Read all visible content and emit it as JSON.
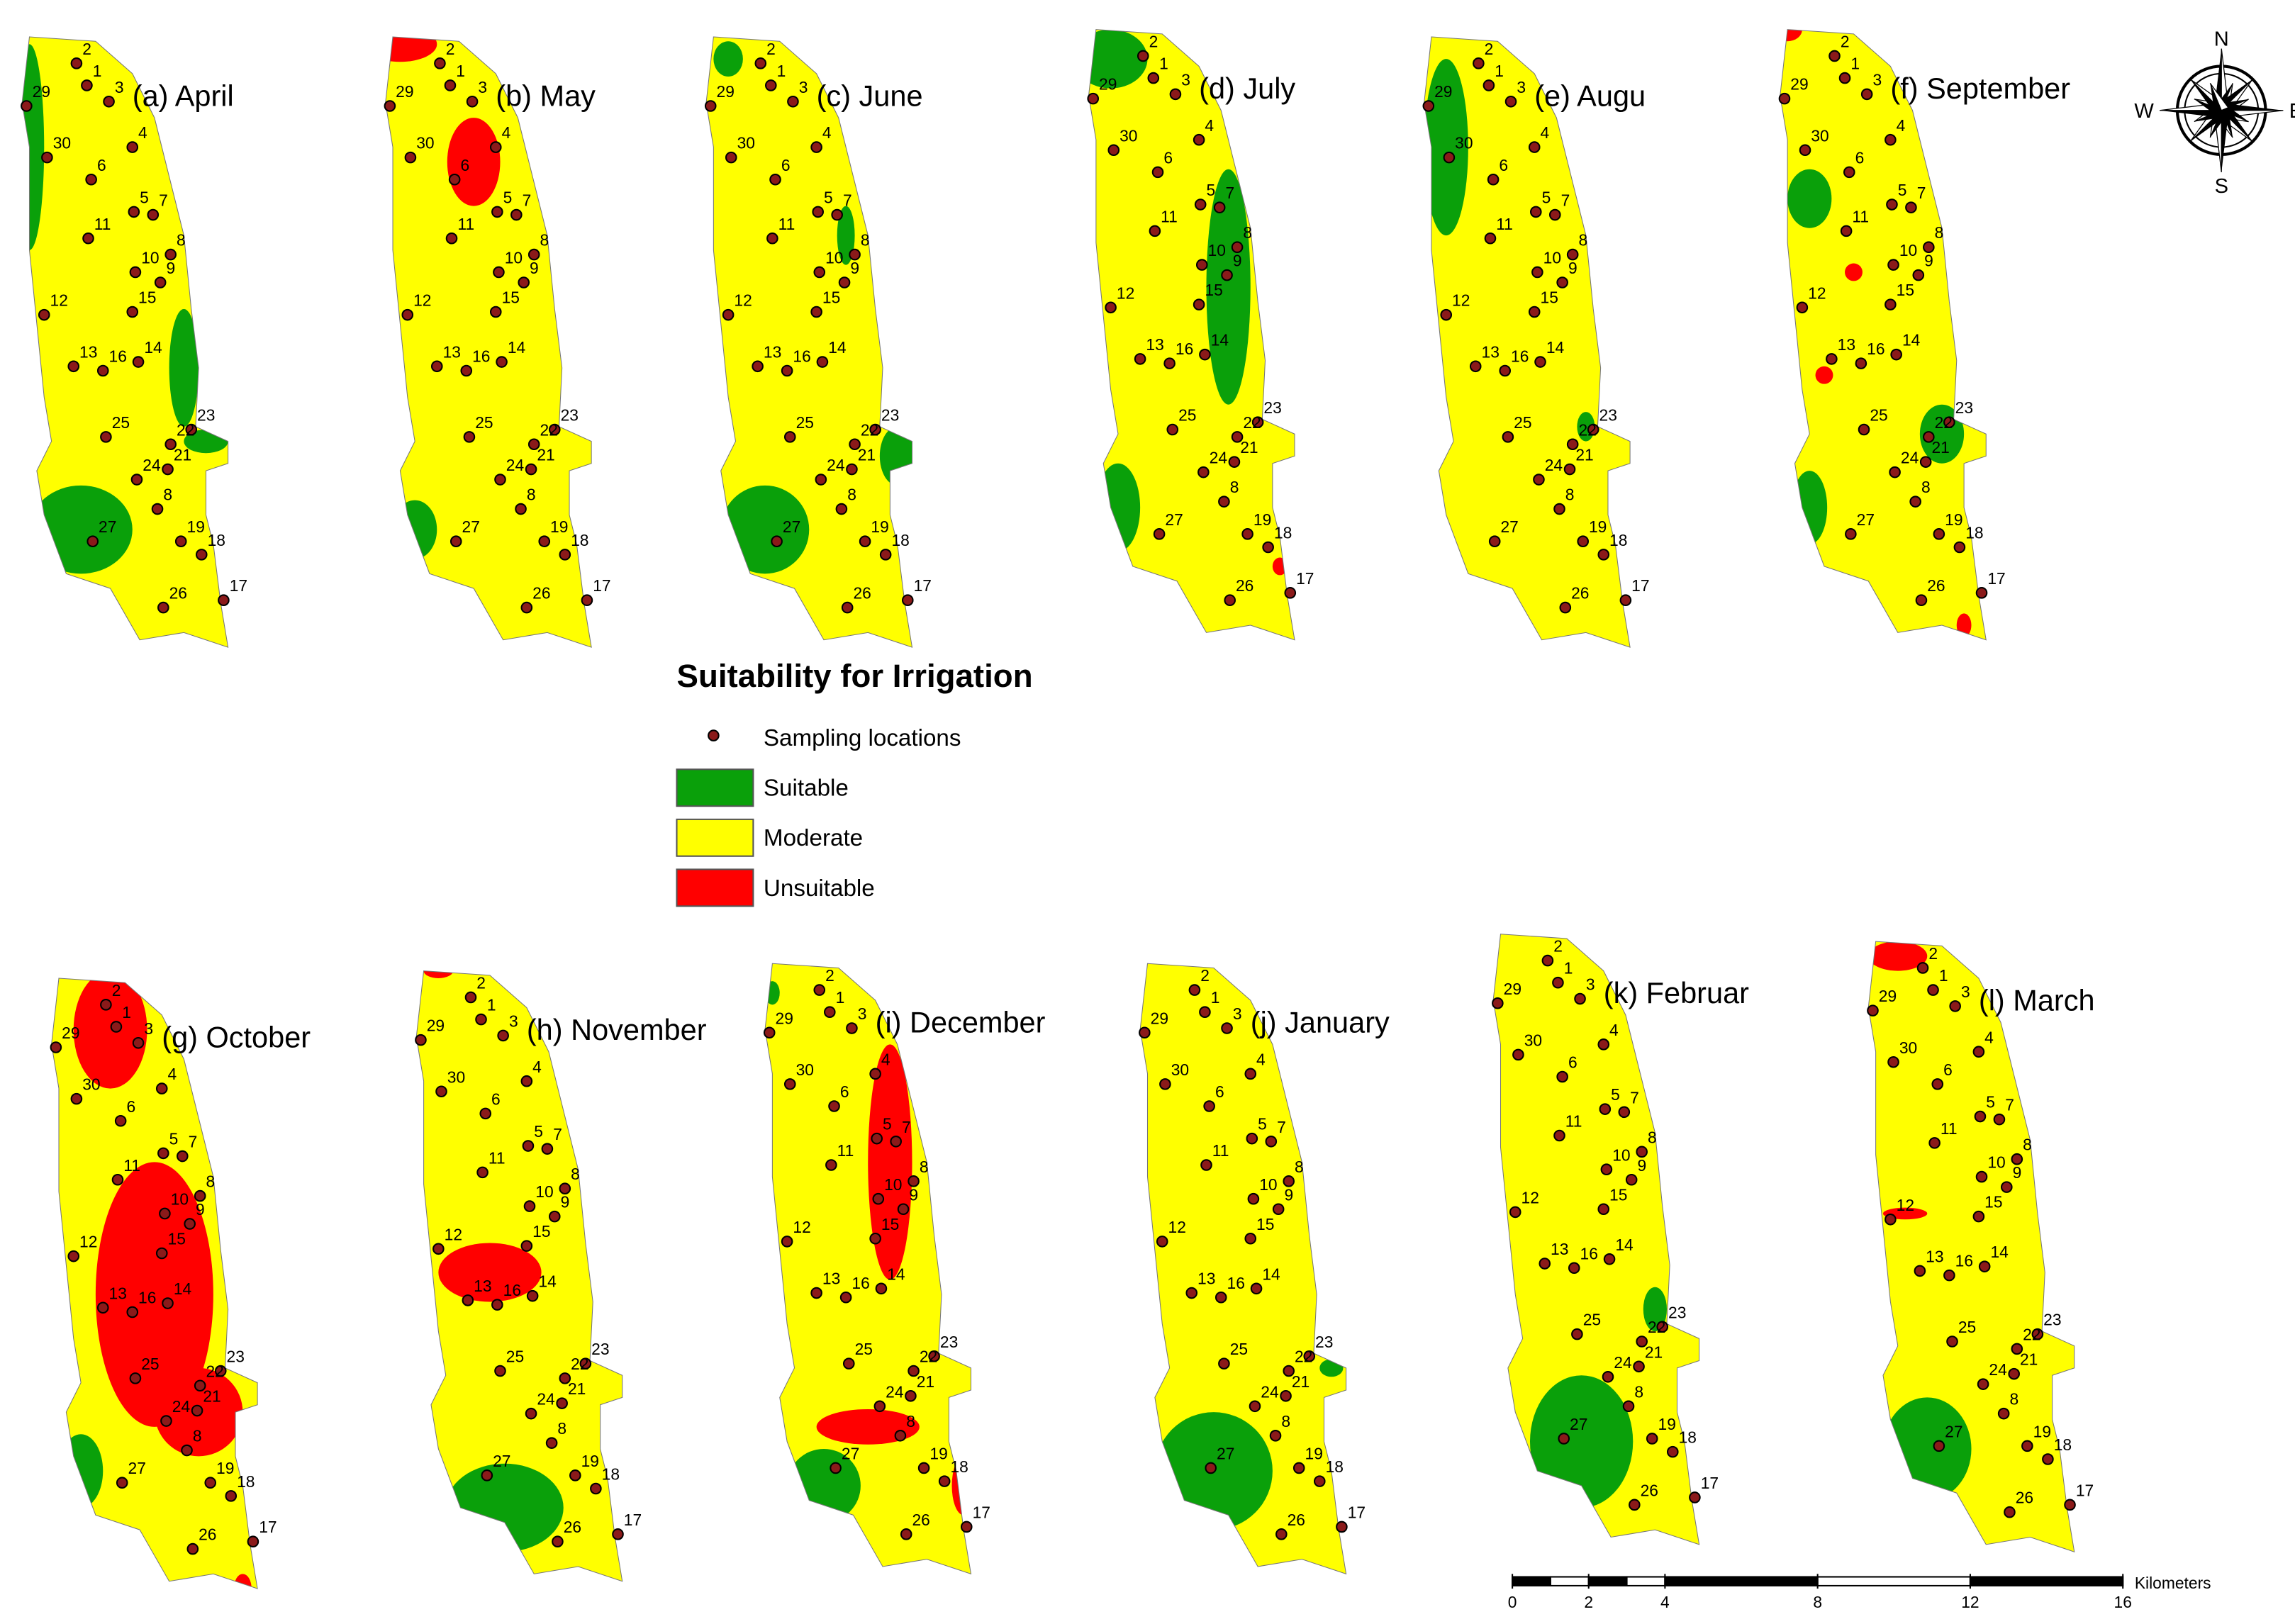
{
  "panels": [
    {
      "title": "(a) April"
    },
    {
      "title": "(b) May"
    },
    {
      "title": "(c) June"
    },
    {
      "title": "(d) July"
    },
    {
      "title": "(e) Augu"
    },
    {
      "title": "(f) September"
    },
    {
      "title": "(g) October"
    },
    {
      "title": "(h) November"
    },
    {
      "title": "(i) December"
    },
    {
      "title": "(j) January"
    },
    {
      "title": "(k) Februar"
    },
    {
      "title": "(l) March"
    }
  ],
  "stations": [
    "2",
    "1",
    "3",
    "29",
    "30",
    "4",
    "6",
    "5",
    "7",
    "11",
    "8",
    "10",
    "9",
    "12",
    "15",
    "13",
    "16",
    "14",
    "25",
    "23",
    "22",
    "21",
    "24",
    "8",
    "27",
    "19",
    "18",
    "26",
    "17"
  ],
  "legend": {
    "title": "Suitability for Irrigation",
    "items": [
      {
        "label": "Sampling locations",
        "color": "#8b1a1a"
      },
      {
        "label": "Suitable",
        "color": "#0aa00a"
      },
      {
        "label": "Moderate",
        "color": "#ffff00"
      },
      {
        "label": "Unsuitable",
        "color": "#ff0000"
      }
    ]
  },
  "compass": {
    "n": "N",
    "e": "E",
    "s": "S",
    "w": "W"
  },
  "scale_bar": {
    "ticks": [
      0,
      2,
      4,
      8,
      12,
      16
    ],
    "unit": "Kilometers"
  }
}
